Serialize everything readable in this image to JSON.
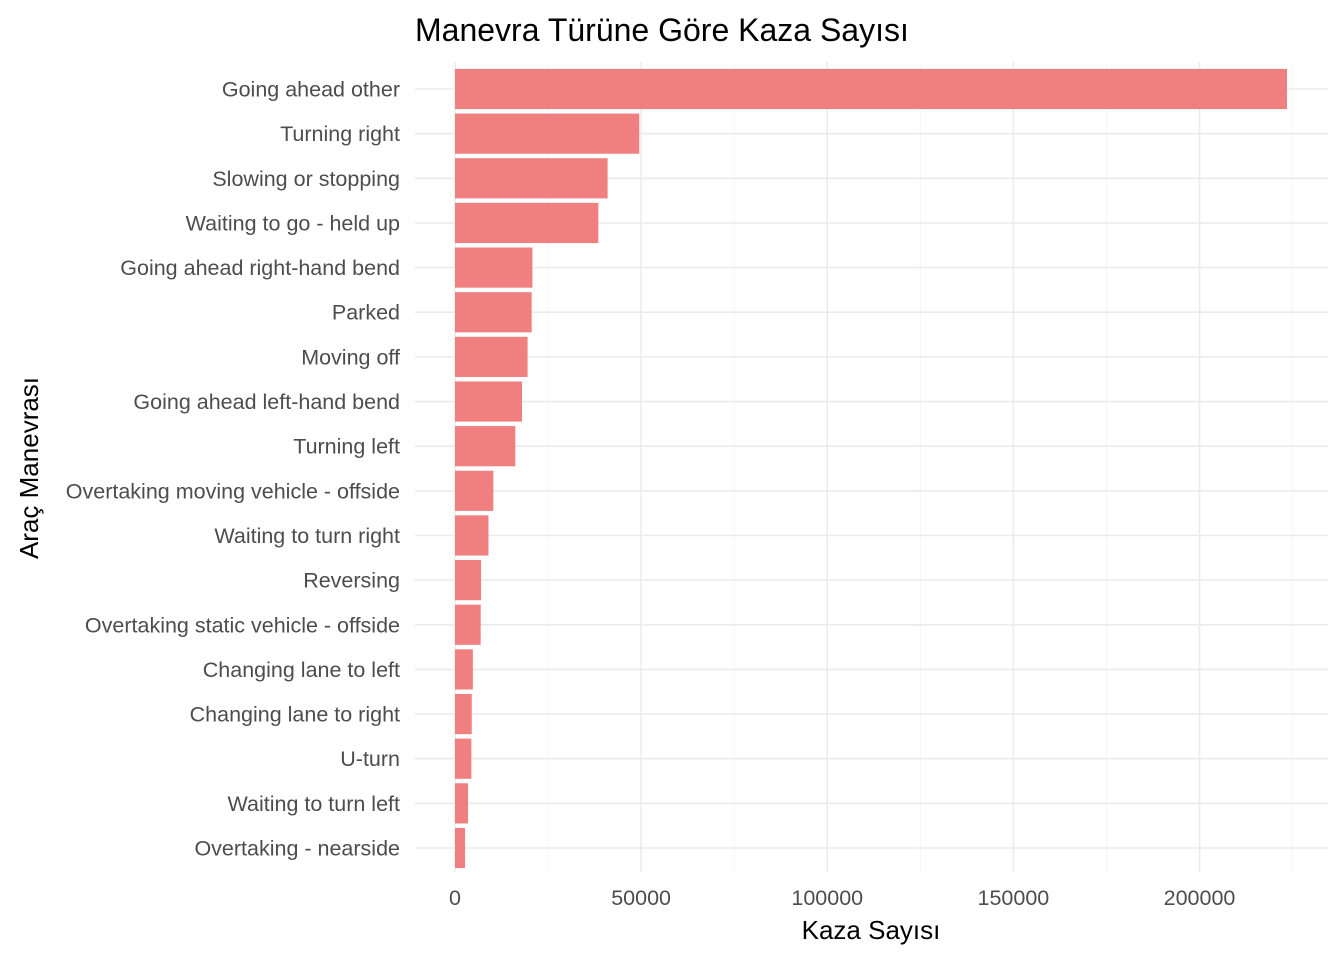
{
  "chart_data": {
    "type": "bar",
    "orientation": "horizontal",
    "title": "Manevra Türüne Göre Kaza Sayısı",
    "xlabel": "Kaza Sayısı",
    "ylabel": "Araç Manevrası",
    "xlim": [
      0,
      235000
    ],
    "xticks": [
      0,
      50000,
      100000,
      150000,
      200000
    ],
    "xtick_labels": [
      "0",
      "50000",
      "100000",
      "150000",
      "200000"
    ],
    "grid": true,
    "legend": "none",
    "bar_color": "#F08080",
    "categories": [
      "Going ahead other",
      "Turning right",
      "Slowing or stopping",
      "Waiting to go - held up",
      "Going ahead right-hand bend",
      "Parked",
      "Moving off",
      "Going ahead left-hand bend",
      "Turning left",
      "Overtaking moving vehicle - offside",
      "Waiting to turn right",
      "Reversing",
      "Overtaking static vehicle - offside",
      "Changing lane to left",
      "Changing lane to right",
      "U-turn",
      "Waiting to turn left",
      "Overtaking - nearside"
    ],
    "values": [
      223500,
      49500,
      41000,
      38500,
      20800,
      20600,
      19500,
      18000,
      16200,
      10300,
      9000,
      7000,
      6900,
      4800,
      4500,
      4400,
      3500,
      2700
    ]
  }
}
